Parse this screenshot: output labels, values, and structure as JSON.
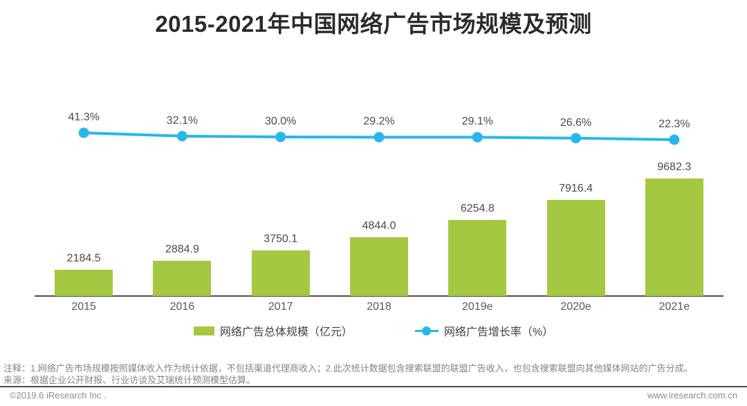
{
  "title": "2015-2021年中国网络广告市场规模及预测",
  "chart_data": {
    "type": "bar",
    "subtype": "bar+line combo, dual axis",
    "categories": [
      "2015",
      "2016",
      "2017",
      "2018",
      "2019e",
      "2020e",
      "2021e"
    ],
    "series": [
      {
        "name": "网络广告总体规模（亿元）",
        "type": "bar",
        "values": [
          2184.5,
          2884.9,
          3750.1,
          4844.0,
          6254.8,
          7916.4,
          9682.3
        ],
        "value_labels": [
          "2184.5",
          "2884.9",
          "3750.1",
          "4844.0",
          "6254.8",
          "7916.4",
          "9682.3"
        ],
        "color": "#a5c843"
      },
      {
        "name": "网络广告增长率（%）",
        "type": "line",
        "values": [
          41.3,
          32.1,
          30.0,
          29.2,
          29.1,
          26.6,
          22.3
        ],
        "value_labels": [
          "41.3%",
          "32.1%",
          "30.0%",
          "29.2%",
          "29.1%",
          "26.6%",
          "22.3%"
        ],
        "color": "#29b7ea"
      }
    ],
    "title": "2015-2021年中国网络广告市场规模及预测",
    "xlabel": "",
    "ylabel": "",
    "grid": false,
    "legend_position": "bottom",
    "data_labels_shown": true
  },
  "legend": {
    "bar_label": "网络广告总体规模（亿元）",
    "line_label": "网络广告增长率（%）"
  },
  "notes": {
    "note1": "注释：1.网络广告市场规模按照媒体收入作为统计依据，不包括渠道代理商收入；2.此次统计数据包含搜索联盟的联盟广告收入，也包含搜索联盟向其他媒体网站的广告分成。",
    "note2": "来源：根据企业公开财报、行业访谈及艾瑞统计预测模型估算。"
  },
  "footer": {
    "copyright": "©2019.6 iResearch Inc .",
    "website": "www.iresearch.com.cn"
  },
  "colors": {
    "bar_green": "#a5c843",
    "line_blue": "#29b7ea",
    "axis": "#4d4d4d",
    "title_text": "#2b2b2b",
    "label_text": "#4a4a4a",
    "note_text": "#848484"
  }
}
